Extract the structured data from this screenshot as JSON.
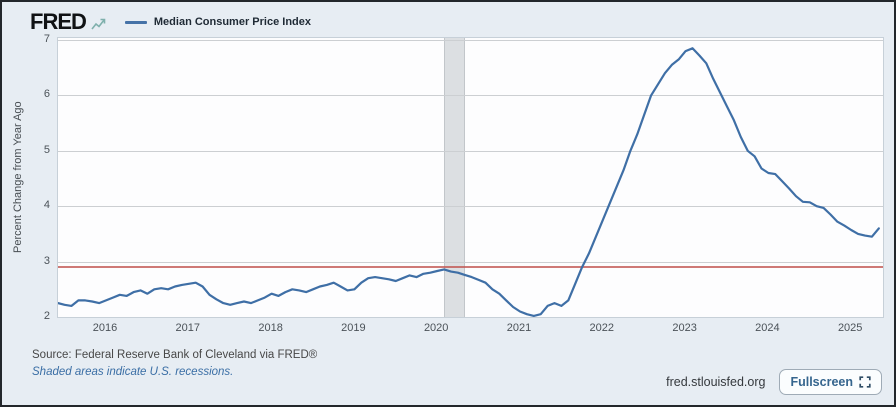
{
  "header": {
    "logo_text": "FRED",
    "legend_label": "Median Consumer Price Index",
    "legend_color": "#4572a7"
  },
  "chart_data": {
    "type": "line",
    "title": "Median Consumer Price Index",
    "ylabel": "Percent Change from Year Ago",
    "ylim": [
      2,
      7
    ],
    "yticks": [
      2,
      3,
      4,
      5,
      6,
      7
    ],
    "xticks": [
      "2016",
      "2017",
      "2018",
      "2019",
      "2020",
      "2021",
      "2022",
      "2023",
      "2024",
      "2025"
    ],
    "grid": "horizontal",
    "legend_position": "top-left",
    "series": [
      {
        "name": "Median Consumer Price Index",
        "color": "#3f6fa6",
        "frequency": "monthly",
        "start_year": 2015,
        "start_month": 6,
        "values": [
          2.25,
          2.22,
          2.2,
          2.3,
          2.3,
          2.28,
          2.25,
          2.3,
          2.35,
          2.4,
          2.38,
          2.45,
          2.48,
          2.42,
          2.5,
          2.52,
          2.5,
          2.55,
          2.58,
          2.6,
          2.62,
          2.55,
          2.4,
          2.32,
          2.25,
          2.22,
          2.25,
          2.28,
          2.25,
          2.3,
          2.35,
          2.42,
          2.38,
          2.45,
          2.5,
          2.48,
          2.45,
          2.5,
          2.55,
          2.58,
          2.62,
          2.55,
          2.48,
          2.5,
          2.62,
          2.7,
          2.72,
          2.7,
          2.68,
          2.65,
          2.7,
          2.75,
          2.72,
          2.78,
          2.8,
          2.83,
          2.86,
          2.82,
          2.8,
          2.76,
          2.72,
          2.67,
          2.62,
          2.5,
          2.42,
          2.3,
          2.18,
          2.1,
          2.05,
          2.02,
          2.05,
          2.2,
          2.25,
          2.2,
          2.3,
          2.6,
          2.9,
          3.15,
          3.45,
          3.75,
          4.05,
          4.35,
          4.65,
          5.0,
          5.3,
          5.65,
          6.0,
          6.2,
          6.4,
          6.55,
          6.65,
          6.8,
          6.85,
          6.72,
          6.58,
          6.3,
          6.05,
          5.8,
          5.55,
          5.25,
          5.0,
          4.9,
          4.68,
          4.6,
          4.58,
          4.45,
          4.32,
          4.18,
          4.08,
          4.07,
          4.0,
          3.97,
          3.85,
          3.72,
          3.65,
          3.57,
          3.5,
          3.47,
          3.45,
          3.6
        ]
      }
    ],
    "reference_line": {
      "value": 2.9,
      "color": "#c25754"
    },
    "recession_bands": [
      {
        "start": "2020-02",
        "end": "2020-05"
      }
    ]
  },
  "footer": {
    "source_text": "Source: Federal Reserve Bank of Cleveland via FRED®",
    "recession_note": "Shaded areas indicate U.S. recessions.",
    "site_text": "fred.stlouisfed.org",
    "fullscreen_label": "Fullscreen"
  }
}
